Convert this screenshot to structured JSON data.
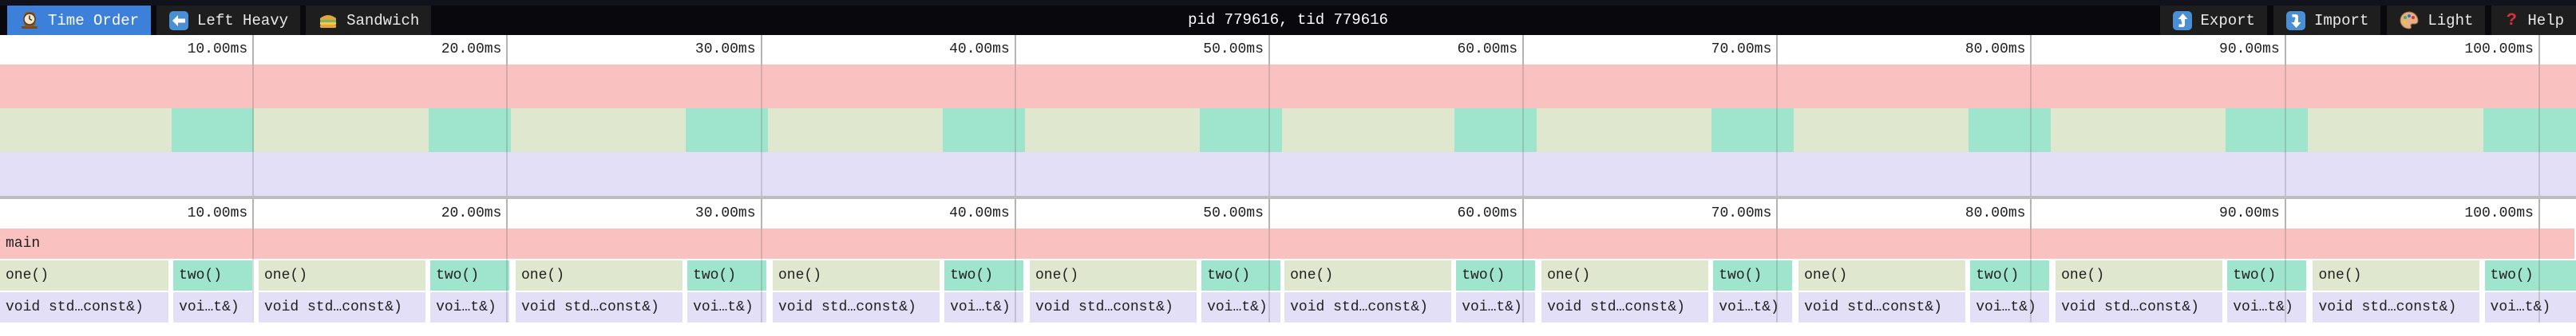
{
  "toolbar": {
    "tabs": [
      {
        "label": "Time Order",
        "icon": "clock-icon",
        "active": true
      },
      {
        "label": "Left Heavy",
        "icon": "left-arrow-icon",
        "active": false
      },
      {
        "label": "Sandwich",
        "icon": "sandwich-icon",
        "active": false
      }
    ],
    "title": "pid 779616, tid 779616",
    "actions": [
      {
        "label": "Export",
        "icon": "export-icon"
      },
      {
        "label": "Import",
        "icon": "import-icon"
      },
      {
        "label": "Light",
        "icon": "palette-icon"
      },
      {
        "label": "Help",
        "icon": "help-icon",
        "glyph": "?"
      }
    ]
  },
  "colors": {
    "toolbar_bg": "#08080d",
    "tab_active_bg": "#3c80d9",
    "tab_bg": "#1e1e1e",
    "frame_main": "#fac1c1",
    "frame_one": "#dfe8cf",
    "frame_two": "#9fe4cc",
    "frame_leaf": "#e2dff7",
    "ruler_tick": "#cfcfcf",
    "minimap_border": "#bdbdbd"
  },
  "chart_data": {
    "type": "flamegraph",
    "time_unit": "ms",
    "total_ms": 101.42,
    "ticks": [
      {
        "ms": 10,
        "label": "10.00ms"
      },
      {
        "ms": 20,
        "label": "20.00ms"
      },
      {
        "ms": 30,
        "label": "30.00ms"
      },
      {
        "ms": 40,
        "label": "40.00ms"
      },
      {
        "ms": 50,
        "label": "50.00ms"
      },
      {
        "ms": 60,
        "label": "60.00ms"
      },
      {
        "ms": 70,
        "label": "70.00ms"
      },
      {
        "ms": 80,
        "label": "80.00ms"
      },
      {
        "ms": 90,
        "label": "90.00ms"
      },
      {
        "ms": 100,
        "label": "100.00ms"
      }
    ],
    "frame_labels": {
      "root": "main",
      "one": "one()",
      "two": "two()",
      "one_child": "void std…const&)",
      "two_child": "voi…t&)"
    },
    "root": {
      "start": 0,
      "end": 101.42
    },
    "iterations": [
      {
        "one_start": 0.0,
        "one_dur": 6.69,
        "two_start": 6.76,
        "two_dur": 3.24
      },
      {
        "one_start": 10.12,
        "one_dur": 6.69,
        "two_start": 16.88,
        "two_dur": 3.24
      },
      {
        "one_start": 20.24,
        "one_dur": 6.69,
        "two_start": 27.0,
        "two_dur": 3.24
      },
      {
        "one_start": 30.36,
        "one_dur": 6.69,
        "two_start": 37.12,
        "two_dur": 3.24
      },
      {
        "one_start": 40.48,
        "one_dur": 6.69,
        "two_start": 47.24,
        "two_dur": 3.24
      },
      {
        "one_start": 50.51,
        "one_dur": 6.69,
        "two_start": 57.27,
        "two_dur": 3.24
      },
      {
        "one_start": 60.63,
        "one_dur": 6.69,
        "two_start": 67.39,
        "two_dur": 3.24
      },
      {
        "one_start": 70.75,
        "one_dur": 6.69,
        "two_start": 77.51,
        "two_dur": 3.24
      },
      {
        "one_start": 80.87,
        "one_dur": 6.69,
        "two_start": 87.63,
        "two_dur": 3.24
      },
      {
        "one_start": 91.0,
        "one_dur": 6.69,
        "two_start": 97.76,
        "two_dur": 3.8
      }
    ]
  }
}
